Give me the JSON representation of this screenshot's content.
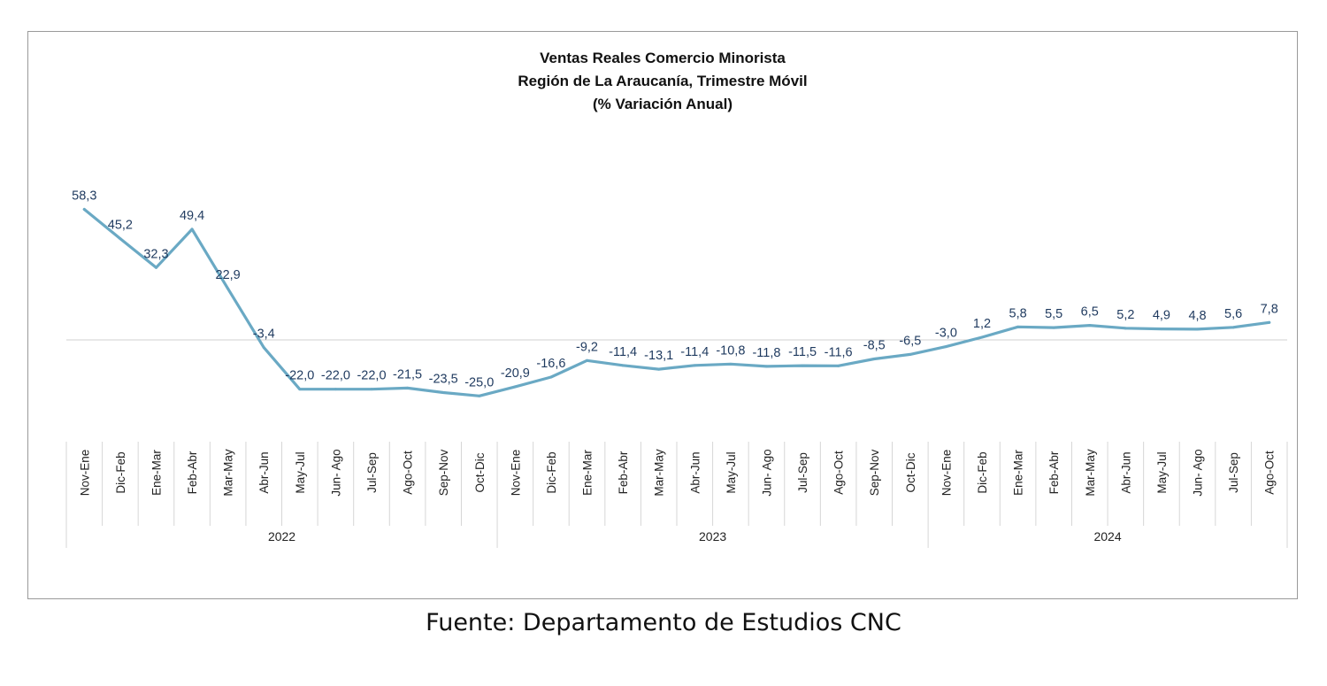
{
  "source_note": "Fuente: Departamento de Estudios CNC",
  "chart_data": {
    "type": "line",
    "title": "Ventas Reales Comercio Minorista",
    "subtitle": "Región de La Araucanía, Trimestre Móvil",
    "subtitle2": "(% Variación Anual)",
    "xlabel": "",
    "ylabel": "",
    "line_color": "#6aa9c4",
    "label_color": "#1f3a5f",
    "grid": false,
    "legend": "none",
    "categories": [
      "Nov-Ene",
      "Dic-Feb",
      "Ene-Mar",
      "Feb-Abr",
      "Mar-May",
      "Abr-Jun",
      "May-Jul",
      "Jun- Ago",
      "Jul-Sep",
      "Ago-Oct",
      "Sep-Nov",
      "Oct-Dic",
      "Nov-Ene",
      "Dic-Feb",
      "Ene-Mar",
      "Feb-Abr",
      "Mar-May",
      "Abr-Jun",
      "May-Jul",
      "Jun- Ago",
      "Jul-Sep",
      "Ago-Oct",
      "Sep-Nov",
      "Oct-Dic",
      "Nov-Ene",
      "Dic-Feb",
      "Ene-Mar",
      "Feb-Abr",
      "Mar-May",
      "Abr-Jun",
      "May-Jul",
      "Jun- Ago",
      "Jul-Sep",
      "Ago-Oct"
    ],
    "values": [
      58.3,
      45.2,
      32.3,
      49.4,
      22.9,
      -3.4,
      -22.0,
      -22.0,
      -22.0,
      -21.5,
      -23.5,
      -25.0,
      -20.9,
      -16.6,
      -9.2,
      -11.4,
      -13.1,
      -11.4,
      -10.8,
      -11.8,
      -11.5,
      -11.6,
      -8.5,
      -6.5,
      -3.0,
      1.2,
      5.8,
      5.5,
      6.5,
      5.2,
      4.9,
      4.8,
      5.6,
      7.8
    ],
    "data_labels": [
      "58,3",
      "45,2",
      "32,3",
      "49,4",
      "22,9",
      "-3,4",
      "-22,0",
      "-22,0",
      "-22,0",
      "-21,5",
      "-23,5",
      "-25,0",
      "-20,9",
      "-16,6",
      "-9,2",
      "-11,4",
      "-13,1",
      "-11,4",
      "-10,8",
      "-11,8",
      "-11,5",
      "-11,6",
      "-8,5",
      "-6,5",
      "-3,0",
      "1,2",
      "5,8",
      "5,5",
      "6,5",
      "5,2",
      "4,9",
      "4,8",
      "5,6",
      "7,8"
    ],
    "groups": [
      {
        "label": "2022",
        "count": 12
      },
      {
        "label": "2023",
        "count": 12
      },
      {
        "label": "2024",
        "count": 10
      }
    ]
  }
}
